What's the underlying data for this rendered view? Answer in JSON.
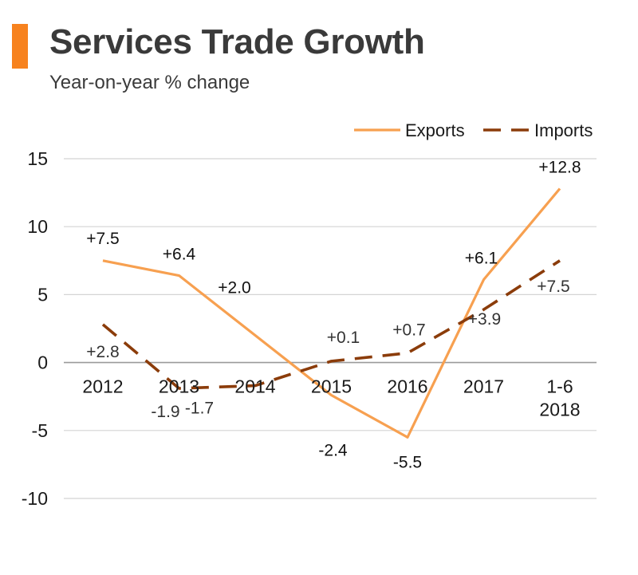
{
  "header": {
    "title": "Services Trade Growth",
    "subtitle": "Year-on-year % change"
  },
  "colors": {
    "accent": "#f7821e",
    "exports": "#f7a050",
    "imports": "#8b3c0a",
    "grid": "#d4d4d4",
    "axis": "#9a9a9a"
  },
  "chart_data": {
    "type": "line",
    "title": "Services Trade Growth",
    "subtitle": "Year-on-year % change",
    "xlabel": "",
    "ylabel": "",
    "categories": [
      "2012",
      "2013",
      "2014",
      "2015",
      "2016",
      "2017",
      "1-6\n2018"
    ],
    "ylim": [
      -10,
      15
    ],
    "yticks": [
      15,
      10,
      5,
      0,
      -5,
      -10
    ],
    "grid": true,
    "legend": "top-right",
    "series": [
      {
        "name": "Exports",
        "style": "solid",
        "values": [
          7.5,
          6.4,
          2.0,
          -2.4,
          -5.5,
          6.1,
          12.8
        ],
        "labels": [
          "+7.5",
          "+6.4",
          "+2.0",
          "-2.4",
          "-5.5",
          "+6.1",
          "+12.8"
        ]
      },
      {
        "name": "Imports",
        "style": "dashed",
        "values": [
          2.8,
          -1.9,
          -1.7,
          0.1,
          0.7,
          3.9,
          7.5
        ],
        "labels": [
          "+2.8",
          "-1.9",
          "-1.7",
          "+0.1",
          "+0.7",
          "+3.9",
          "+7.5"
        ]
      }
    ]
  }
}
